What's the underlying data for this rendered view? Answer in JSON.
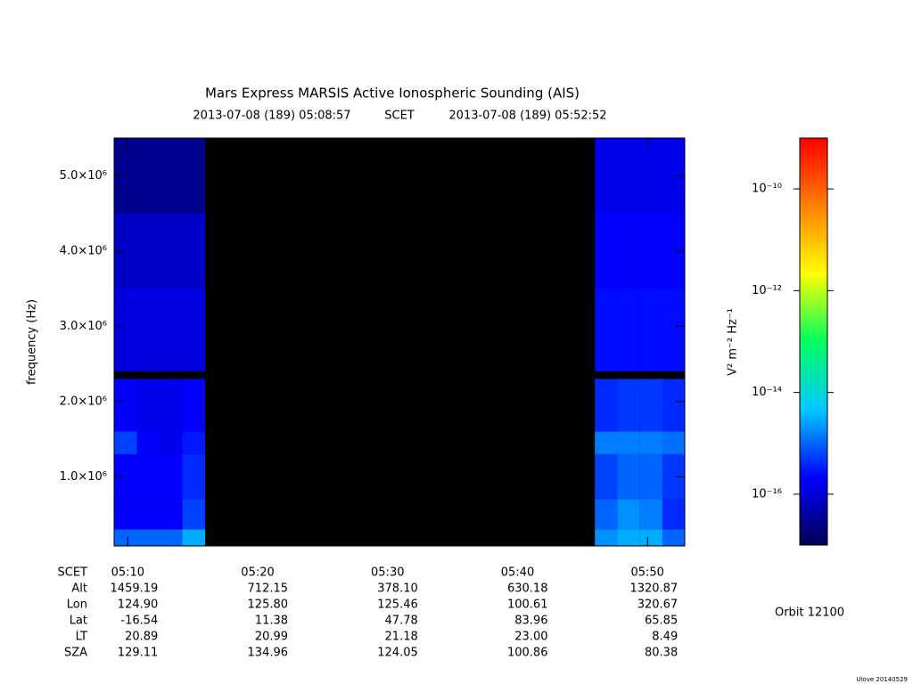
{
  "chart_data": {
    "type": "spectrogram",
    "title": "Mars Express MARSIS Active Ionospheric Sounding (AIS)",
    "subtitle": [
      "2013-07-08 (189) 05:08:57",
      "SCET",
      "2013-07-08 (189) 05:52:52"
    ],
    "ylabel": "frequency (Hz)",
    "xlim": [
      "05:08:57",
      "05:52:52"
    ],
    "xticks": [
      "05:10",
      "05:20",
      "05:30",
      "05:40",
      "05:50"
    ],
    "ylim": [
      80000,
      5500000
    ],
    "yticks": [
      {
        "value": 1000000,
        "label": "1.0×10⁶"
      },
      {
        "value": 2000000,
        "label": "2.0×10⁶"
      },
      {
        "value": 3000000,
        "label": "3.0×10⁶"
      },
      {
        "value": 4000000,
        "label": "4.0×10⁶"
      },
      {
        "value": 5000000,
        "label": "5.0×10⁶"
      }
    ],
    "x_bins": [
      "05:08:57",
      "05:10:42",
      "05:12:27",
      "05:14:12",
      "05:15:57",
      "05:45:57",
      "05:47:41",
      "05:49:25",
      "05:51:09",
      "05:52:52"
    ],
    "y_bins": [
      80000,
      300000,
      700000,
      1300000,
      1600000,
      2300000,
      2400000,
      3500000,
      4500000,
      5500000
    ],
    "z": [
      [
        1e-15,
        1e-15,
        1e-15,
        3e-15,
        null,
        2e-15,
        3e-15,
        3e-15,
        1e-15
      ],
      [
        2e-16,
        2e-16,
        2e-16,
        6e-16,
        null,
        1e-15,
        2e-15,
        1.5e-15,
        4e-16
      ],
      [
        2e-16,
        2e-16,
        2e-16,
        4e-16,
        null,
        6e-16,
        1e-15,
        1e-15,
        5e-16
      ],
      [
        6e-16,
        2e-16,
        1.5e-16,
        3e-16,
        null,
        1.5e-15,
        1.5e-15,
        1.5e-15,
        1.2e-15
      ],
      [
        2e-16,
        1.5e-16,
        1.5e-16,
        2e-16,
        null,
        4e-16,
        5e-16,
        5e-16,
        4e-16
      ],
      [
        5e-18,
        5e-18,
        5e-18,
        5e-18,
        null,
        5e-18,
        5e-18,
        5e-18,
        5e-18
      ],
      [
        1.2e-16,
        1.2e-16,
        1.2e-16,
        1.2e-16,
        null,
        2.5e-16,
        2.5e-16,
        2.5e-16,
        2.5e-16
      ],
      [
        8e-17,
        8e-17,
        8e-17,
        8e-17,
        null,
        2e-16,
        2e-16,
        2e-16,
        2e-16
      ],
      [
        3e-17,
        3e-17,
        3e-17,
        3e-17,
        null,
        1.5e-16,
        1.5e-16,
        1.5e-16,
        1.5e-16
      ]
    ],
    "background": "#000000",
    "colorbar": {
      "label": "V² m⁻² Hz⁻¹",
      "scale": "log",
      "lim": [
        1e-17,
        1e-09
      ],
      "ticks": [
        {
          "value": 1e-10,
          "label": "10⁻¹⁰"
        },
        {
          "value": 1e-12,
          "label": "10⁻¹²"
        },
        {
          "value": 1e-14,
          "label": "10⁻¹⁴"
        },
        {
          "value": 1e-16,
          "label": "10⁻¹⁶"
        }
      ],
      "colors": [
        "#000050",
        "#0000ff",
        "#00c8ff",
        "#00ff60",
        "#ffff00",
        "#ff8000",
        "#ff0000"
      ],
      "under_color": "#000000"
    }
  },
  "ephemeris": {
    "time_label": "SCET",
    "rows": [
      {
        "label": "Alt",
        "values": [
          "1459.19",
          "712.15",
          "378.10",
          "630.18",
          "1320.87"
        ]
      },
      {
        "label": "Lon",
        "values": [
          "124.90",
          "125.80",
          "125.46",
          "100.61",
          "320.67"
        ]
      },
      {
        "label": "Lat",
        "values": [
          "-16.54",
          "11.38",
          "47.78",
          "83.96",
          "65.85"
        ]
      },
      {
        "label": "LT",
        "values": [
          "20.89",
          "20.99",
          "21.18",
          "23.00",
          "8.49"
        ]
      },
      {
        "label": "SZA",
        "values": [
          "129.11",
          "134.96",
          "124.05",
          "100.86",
          "80.38"
        ]
      }
    ]
  },
  "orbit": "Orbit 12100",
  "credit": "Ulove 20140529"
}
